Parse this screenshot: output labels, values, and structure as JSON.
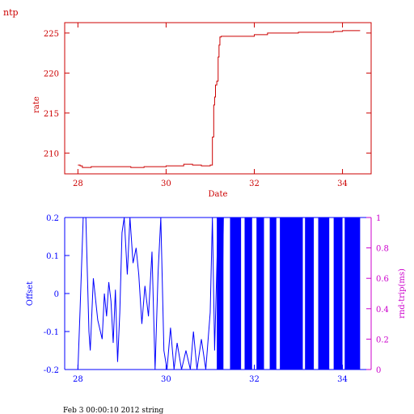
{
  "header": {
    "title": "ntp"
  },
  "footer": {
    "caption": "Feb  3 00:00:10 2012 string"
  },
  "colors": {
    "top": "#cc0000",
    "offset": "#0000ff",
    "rtt": "#cc00cc"
  },
  "chart_data": [
    {
      "type": "line",
      "xlabel": "Date",
      "ylabel": "rate",
      "xlim": [
        27.7,
        34.65
      ],
      "ylim": [
        207.4,
        226.3
      ],
      "xticks": [
        28,
        30,
        32,
        34
      ],
      "yticks": [
        210,
        215,
        220,
        225
      ],
      "grid": false,
      "series": [
        {
          "x": [
            28.0,
            28.05,
            28.1,
            28.3,
            28.5,
            29.0,
            29.2,
            29.5,
            30.0,
            30.2,
            30.4,
            30.6,
            30.8,
            31.0,
            31.05,
            31.08,
            31.1,
            31.12,
            31.15,
            31.18,
            31.2,
            31.22,
            31.25,
            31.3,
            31.6,
            31.9,
            32.0,
            32.2,
            32.3,
            32.5,
            33.0,
            33.5,
            33.8,
            34.0,
            34.4
          ],
          "y": [
            208.5,
            208.4,
            208.2,
            208.3,
            208.3,
            208.3,
            208.2,
            208.3,
            208.4,
            208.4,
            208.6,
            208.5,
            208.4,
            208.5,
            212.0,
            216.0,
            217.0,
            218.5,
            219.0,
            222.0,
            223.5,
            224.5,
            224.6,
            224.6,
            224.6,
            224.6,
            224.8,
            224.8,
            225.0,
            225.0,
            225.1,
            225.1,
            225.2,
            225.3,
            225.3
          ]
        }
      ]
    },
    {
      "type": "line",
      "ylabel": "Offset",
      "y2label": "rnd-trip(ms)",
      "xlim": [
        27.7,
        34.65
      ],
      "ylim": [
        -0.2,
        0.2
      ],
      "y2lim": [
        0,
        1
      ],
      "xticks": [
        28,
        30,
        32,
        34
      ],
      "yticks": [
        -0.2,
        -0.1,
        0,
        0.1,
        0.2
      ],
      "y2ticks": [
        0,
        0.2,
        0.4,
        0.6,
        0.8,
        1
      ],
      "grid": false,
      "series": [
        {
          "x": [
            28.0,
            28.05,
            28.12,
            28.18,
            28.25,
            28.28,
            28.35,
            28.45,
            28.55,
            28.6,
            28.65,
            28.7,
            28.75,
            28.8,
            28.85,
            28.9,
            28.95,
            29.0,
            29.05,
            29.12,
            29.18,
            29.25,
            29.32,
            29.38,
            29.45,
            29.52,
            29.6,
            29.68,
            29.75,
            29.82,
            29.88,
            29.95,
            30.02,
            30.1,
            30.18,
            30.25,
            30.35,
            30.45,
            30.55,
            30.62,
            30.7,
            30.8,
            30.9,
            31.0,
            31.05,
            31.1,
            31.18,
            31.25,
            31.3
          ],
          "y": [
            -0.2,
            -0.04,
            0.2,
            0.2,
            -0.1,
            -0.15,
            0.04,
            -0.07,
            -0.12,
            0.0,
            -0.06,
            0.03,
            -0.02,
            -0.13,
            0.01,
            -0.18,
            -0.05,
            0.16,
            0.2,
            0.05,
            0.2,
            0.08,
            0.12,
            0.05,
            -0.08,
            0.02,
            -0.06,
            0.11,
            -0.2,
            0.06,
            0.2,
            -0.15,
            -0.2,
            -0.09,
            -0.2,
            -0.13,
            -0.2,
            -0.15,
            -0.2,
            -0.1,
            -0.2,
            -0.12,
            -0.2,
            -0.05,
            0.2,
            -0.15,
            0.2,
            -0.2,
            0.2
          ]
        }
      ],
      "rtt_bands": [
        [
          31.15,
          31.3
        ],
        [
          31.45,
          31.7
        ],
        [
          31.78,
          31.95
        ],
        [
          32.05,
          32.22
        ],
        [
          32.35,
          32.5
        ],
        [
          32.58,
          33.1
        ],
        [
          33.15,
          33.35
        ],
        [
          33.45,
          33.7
        ],
        [
          33.8,
          34.0
        ],
        [
          34.05,
          34.4
        ]
      ]
    }
  ]
}
